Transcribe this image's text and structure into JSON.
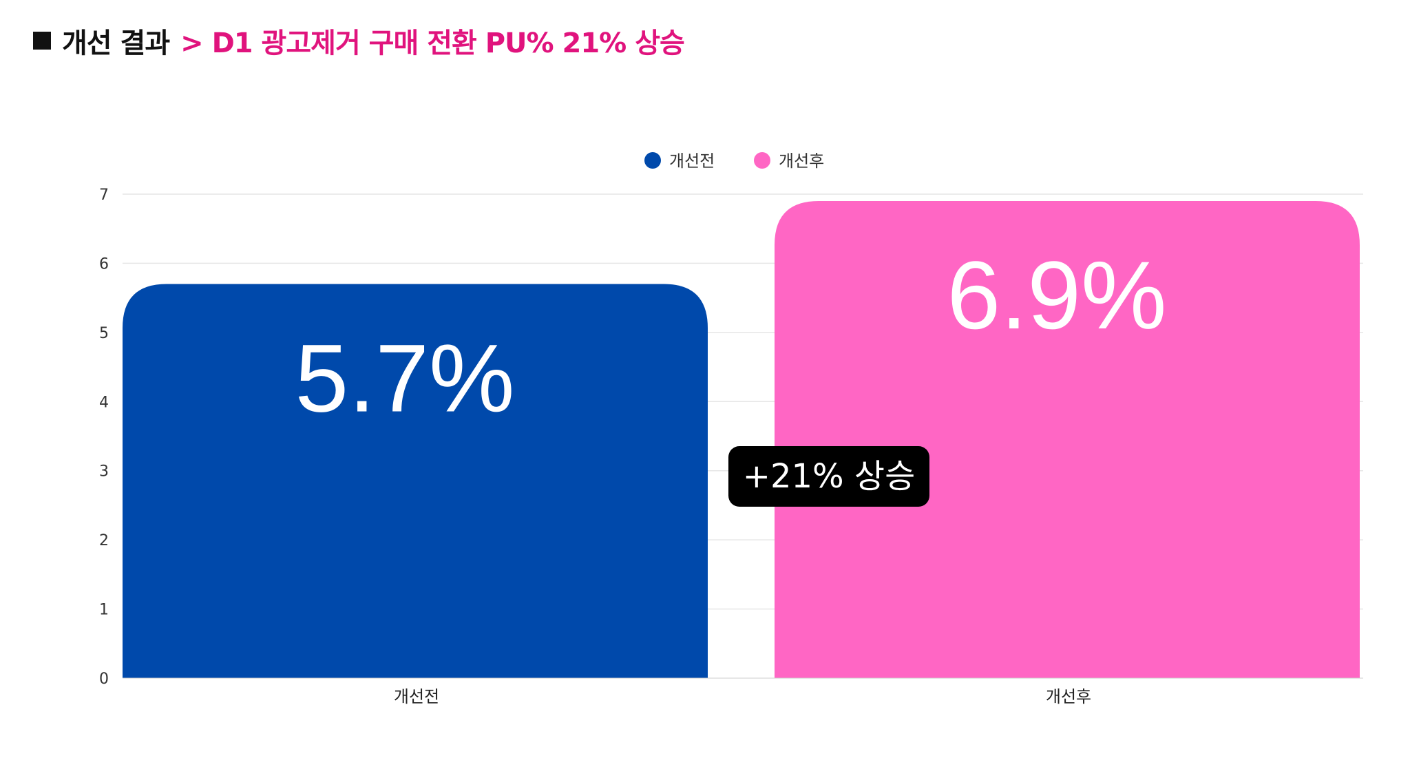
{
  "header": {
    "main": "개선 결과",
    "accent": "> D1 광고제거 구매 전환 PU% 21% 상승"
  },
  "colors": {
    "accent": "#e0137d",
    "before": "#0049ab",
    "after": "#ff66c4",
    "callout": "#000000",
    "grid": "#e6e6e6"
  },
  "callout": {
    "text": "+21% 상승"
  },
  "chart_data": {
    "type": "bar",
    "categories": [
      "개선전",
      "개선후"
    ],
    "values": [
      5.7,
      6.9
    ],
    "value_labels": [
      "5.7%",
      "6.9%"
    ],
    "legend": [
      "개선전",
      "개선후"
    ],
    "legend_position": "top-center",
    "ylim": [
      0,
      7
    ],
    "yticks": [
      "0",
      "1",
      "2",
      "3",
      "4",
      "5",
      "6",
      "7"
    ],
    "grid": true
  }
}
